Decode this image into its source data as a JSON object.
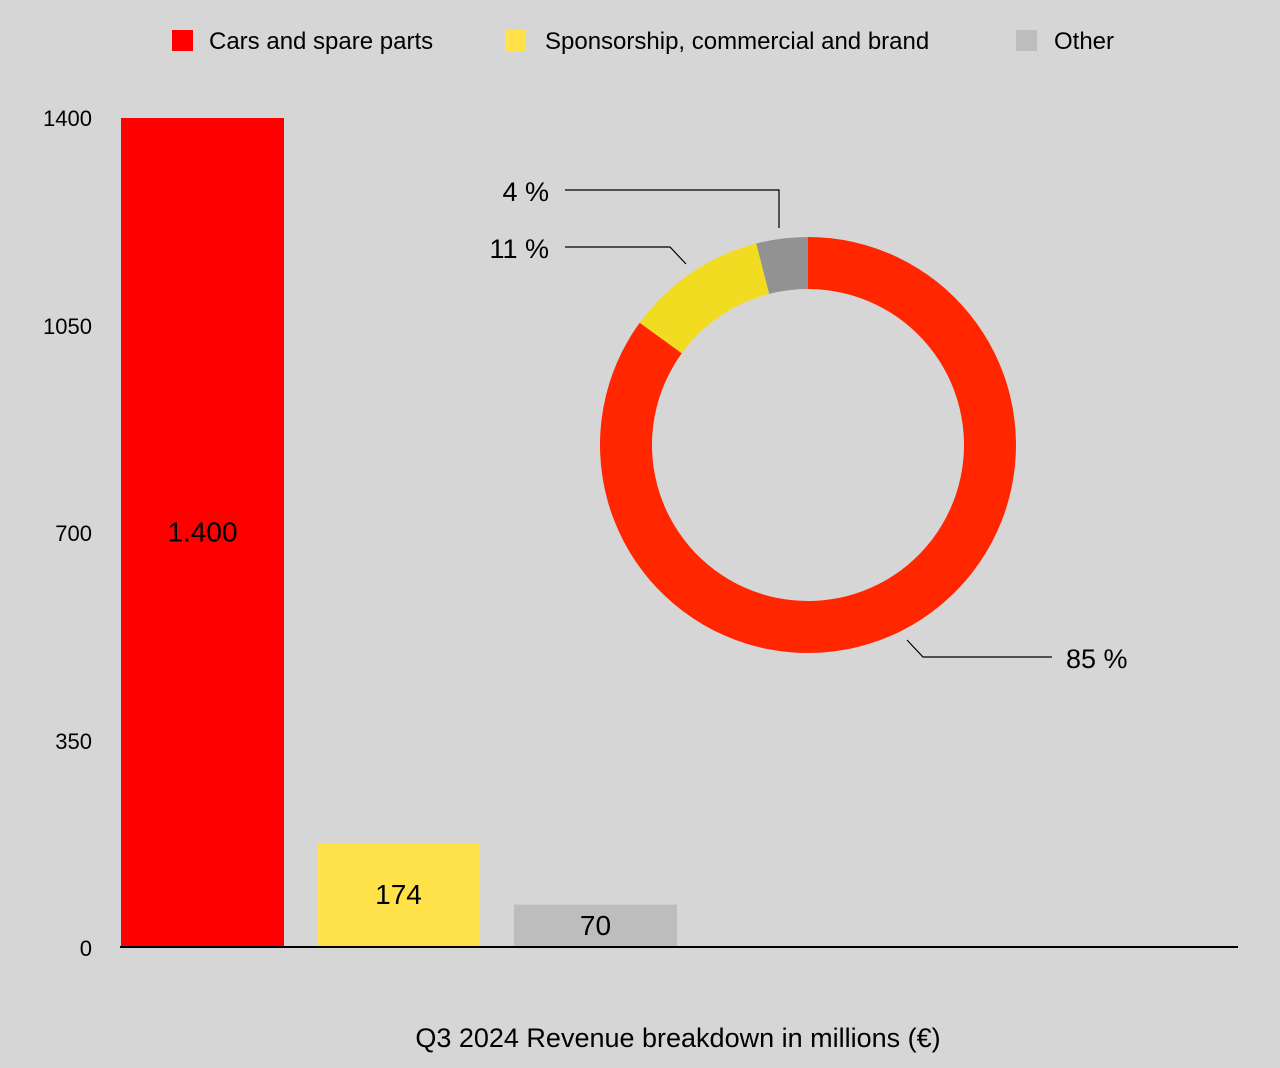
{
  "chart_data": [
    {
      "type": "bar",
      "xlabel": "Q3 2024 Revenue breakdown in millions (€)",
      "ylabel": "",
      "ylim": [
        0,
        1400
      ],
      "yticks": [
        "0",
        "350",
        "700",
        "1050",
        "1400"
      ],
      "categories": [
        "Cars and spare parts",
        "Sponsorship, commercial and brand",
        "Other"
      ],
      "values": [
        1400,
        174,
        70
      ],
      "data_labels": [
        "1.400",
        "174",
        "70"
      ],
      "colors": [
        "#ff0000",
        "#ffe14a",
        "#bdbdbd"
      ],
      "legend": {
        "placement": "top",
        "entries": [
          "Cars and spare parts",
          "Sponsorship, commercial and brand",
          "Other"
        ]
      },
      "grid": false
    },
    {
      "type": "pie",
      "style": "donut",
      "categories": [
        "Cars and spare parts",
        "Sponsorship, commercial and brand",
        "Other"
      ],
      "values": [
        85,
        11,
        4
      ],
      "labels": [
        "85 %",
        "11 %",
        "4 %"
      ],
      "colors": [
        "#ff2600",
        "#f2dc22",
        "#929292"
      ]
    }
  ]
}
